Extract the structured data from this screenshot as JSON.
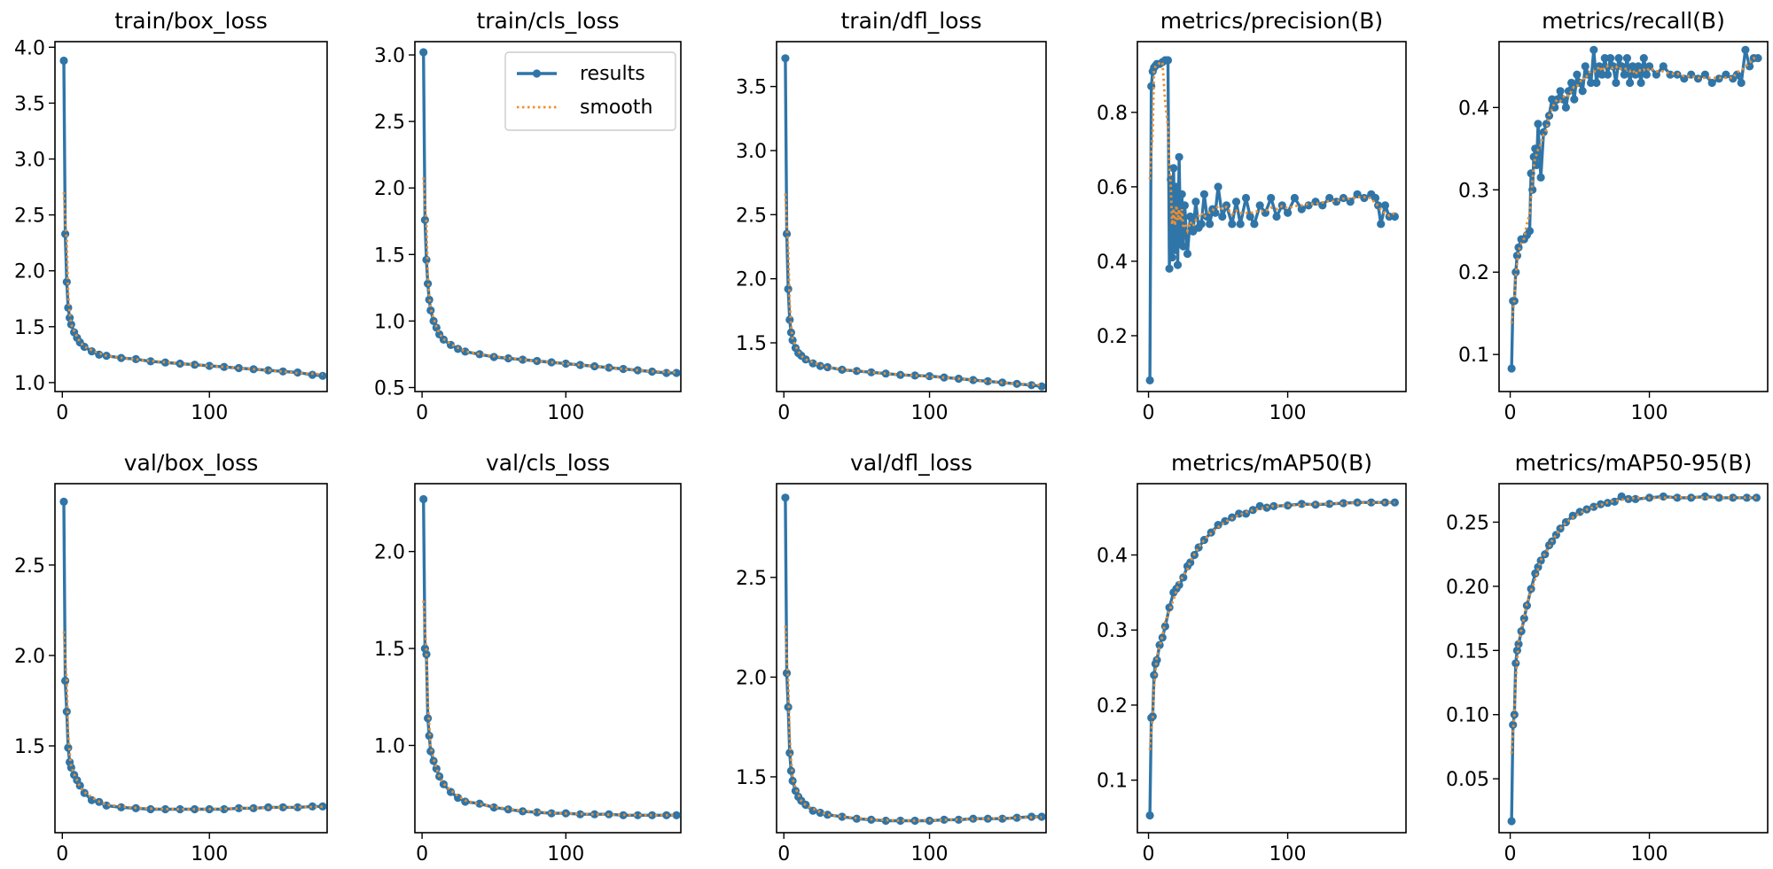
{
  "colors": {
    "results": "#2f75a8",
    "smooth": "#f28e2b",
    "frame": "#000000"
  },
  "legend": {
    "results": "results",
    "smooth": "smooth",
    "placement": "top-right"
  },
  "chart_data": [
    {
      "id": "train-box-loss",
      "type": "line",
      "title": "train/box_loss",
      "xlim": [
        -5,
        180
      ],
      "ylim": [
        0.92,
        4.05
      ],
      "xticks": [
        0,
        100
      ],
      "yticks": [
        1.0,
        1.5,
        2.0,
        2.5,
        3.0,
        3.5,
        4.0
      ],
      "tick_format": 1,
      "series": [
        {
          "name": "results",
          "x": [
            1,
            2,
            3,
            4,
            5,
            6,
            8,
            10,
            12,
            15,
            20,
            25,
            30,
            40,
            50,
            60,
            70,
            80,
            90,
            100,
            110,
            120,
            130,
            140,
            150,
            160,
            170,
            177
          ],
          "y": [
            3.88,
            2.33,
            1.9,
            1.67,
            1.58,
            1.52,
            1.45,
            1.4,
            1.36,
            1.32,
            1.28,
            1.25,
            1.24,
            1.22,
            1.21,
            1.19,
            1.18,
            1.17,
            1.16,
            1.15,
            1.14,
            1.13,
            1.12,
            1.11,
            1.1,
            1.09,
            1.07,
            1.06
          ]
        }
      ]
    },
    {
      "id": "train-cls-loss",
      "type": "line",
      "title": "train/cls_loss",
      "xlim": [
        -5,
        180
      ],
      "ylim": [
        0.47,
        3.1
      ],
      "xticks": [
        0,
        100
      ],
      "yticks": [
        0.5,
        1.0,
        1.5,
        2.0,
        2.5,
        3.0
      ],
      "tick_format": 1,
      "legend": true,
      "series": [
        {
          "name": "results",
          "x": [
            1,
            2,
            3,
            4,
            5,
            6,
            8,
            10,
            12,
            15,
            20,
            25,
            30,
            40,
            50,
            60,
            70,
            80,
            90,
            100,
            110,
            120,
            130,
            140,
            150,
            160,
            170,
            177
          ],
          "y": [
            3.02,
            1.76,
            1.46,
            1.28,
            1.16,
            1.08,
            1.0,
            0.95,
            0.9,
            0.86,
            0.82,
            0.79,
            0.77,
            0.75,
            0.73,
            0.72,
            0.71,
            0.7,
            0.69,
            0.68,
            0.67,
            0.66,
            0.65,
            0.64,
            0.63,
            0.62,
            0.61,
            0.61
          ]
        }
      ]
    },
    {
      "id": "train-dfl-loss",
      "type": "line",
      "title": "train/dfl_loss",
      "xlim": [
        -5,
        180
      ],
      "ylim": [
        1.12,
        3.85
      ],
      "xticks": [
        0,
        100
      ],
      "yticks": [
        1.5,
        2.0,
        2.5,
        3.0,
        3.5
      ],
      "tick_format": 1,
      "series": [
        {
          "name": "results",
          "x": [
            1,
            2,
            3,
            4,
            5,
            6,
            8,
            10,
            12,
            15,
            20,
            25,
            30,
            40,
            50,
            60,
            70,
            80,
            90,
            100,
            110,
            120,
            130,
            140,
            150,
            160,
            170,
            177
          ],
          "y": [
            3.72,
            2.35,
            1.92,
            1.68,
            1.58,
            1.52,
            1.46,
            1.42,
            1.4,
            1.37,
            1.34,
            1.32,
            1.31,
            1.29,
            1.28,
            1.27,
            1.26,
            1.25,
            1.245,
            1.24,
            1.23,
            1.22,
            1.21,
            1.2,
            1.19,
            1.18,
            1.17,
            1.16
          ]
        }
      ]
    },
    {
      "id": "metrics-precision",
      "type": "line",
      "title": "metrics/precision(B)",
      "xlim": [
        -8,
        185
      ],
      "ylim": [
        0.05,
        0.99
      ],
      "xticks": [
        0,
        100
      ],
      "yticks": [
        0.2,
        0.4,
        0.6,
        0.8
      ],
      "tick_format": 1,
      "series": [
        {
          "name": "results",
          "x": [
            1,
            2,
            3,
            4,
            5,
            6,
            8,
            10,
            12,
            14,
            15,
            16,
            17,
            18,
            19,
            20,
            21,
            22,
            23,
            24,
            25,
            26,
            28,
            30,
            32,
            34,
            36,
            38,
            40,
            42,
            44,
            46,
            48,
            50,
            53,
            56,
            60,
            63,
            66,
            70,
            73,
            76,
            80,
            84,
            88,
            92,
            96,
            100,
            105,
            110,
            115,
            120,
            125,
            130,
            135,
            140,
            145,
            150,
            155,
            160,
            163,
            165,
            167,
            170,
            173,
            177
          ],
          "y": [
            0.08,
            0.87,
            0.91,
            0.92,
            0.925,
            0.93,
            0.93,
            0.935,
            0.94,
            0.94,
            0.38,
            0.62,
            0.41,
            0.65,
            0.43,
            0.6,
            0.39,
            0.68,
            0.45,
            0.58,
            0.44,
            0.55,
            0.42,
            0.52,
            0.48,
            0.56,
            0.49,
            0.5,
            0.58,
            0.52,
            0.5,
            0.54,
            0.53,
            0.6,
            0.52,
            0.55,
            0.5,
            0.56,
            0.5,
            0.57,
            0.52,
            0.5,
            0.55,
            0.53,
            0.57,
            0.52,
            0.55,
            0.53,
            0.57,
            0.54,
            0.55,
            0.56,
            0.55,
            0.57,
            0.56,
            0.57,
            0.56,
            0.58,
            0.57,
            0.58,
            0.57,
            0.55,
            0.5,
            0.55,
            0.52,
            0.52
          ]
        }
      ]
    },
    {
      "id": "metrics-recall",
      "type": "line",
      "title": "metrics/recall(B)",
      "xlim": [
        -8,
        185
      ],
      "ylim": [
        0.055,
        0.48
      ],
      "xticks": [
        0,
        100
      ],
      "yticks": [
        0.1,
        0.2,
        0.3,
        0.4
      ],
      "tick_format": 1,
      "series": [
        {
          "name": "results",
          "x": [
            1,
            2,
            3,
            4,
            5,
            6,
            8,
            10,
            12,
            14,
            15,
            16,
            17,
            18,
            19,
            20,
            22,
            24,
            26,
            28,
            30,
            32,
            34,
            36,
            38,
            40,
            42,
            44,
            46,
            48,
            50,
            52,
            54,
            56,
            58,
            60,
            62,
            64,
            66,
            68,
            70,
            72,
            74,
            76,
            78,
            80,
            82,
            84,
            86,
            88,
            90,
            92,
            94,
            96,
            98,
            100,
            105,
            110,
            115,
            120,
            125,
            130,
            135,
            140,
            145,
            150,
            155,
            160,
            163,
            166,
            169,
            172,
            175,
            178
          ],
          "y": [
            0.083,
            0.165,
            0.165,
            0.2,
            0.22,
            0.23,
            0.24,
            0.24,
            0.245,
            0.25,
            0.32,
            0.3,
            0.34,
            0.35,
            0.33,
            0.38,
            0.315,
            0.37,
            0.38,
            0.39,
            0.41,
            0.4,
            0.41,
            0.42,
            0.41,
            0.4,
            0.42,
            0.43,
            0.41,
            0.44,
            0.43,
            0.42,
            0.45,
            0.44,
            0.43,
            0.47,
            0.43,
            0.45,
            0.44,
            0.46,
            0.44,
            0.46,
            0.45,
            0.43,
            0.46,
            0.45,
            0.44,
            0.46,
            0.43,
            0.45,
            0.44,
            0.45,
            0.43,
            0.46,
            0.44,
            0.45,
            0.44,
            0.45,
            0.44,
            0.44,
            0.435,
            0.44,
            0.435,
            0.44,
            0.43,
            0.435,
            0.44,
            0.435,
            0.44,
            0.43,
            0.47,
            0.45,
            0.46,
            0.46
          ]
        }
      ]
    },
    {
      "id": "val-box-loss",
      "type": "line",
      "title": "val/box_loss",
      "xlim": [
        -5,
        180
      ],
      "ylim": [
        1.02,
        2.95
      ],
      "xticks": [
        0,
        100
      ],
      "yticks": [
        1.5,
        2.0,
        2.5
      ],
      "tick_format": 1,
      "series": [
        {
          "name": "results",
          "x": [
            1,
            2,
            3,
            4,
            5,
            6,
            8,
            10,
            12,
            15,
            20,
            25,
            30,
            40,
            50,
            60,
            70,
            80,
            90,
            100,
            110,
            120,
            130,
            140,
            150,
            160,
            170,
            177
          ],
          "y": [
            2.85,
            1.86,
            1.69,
            1.49,
            1.41,
            1.38,
            1.34,
            1.31,
            1.28,
            1.24,
            1.2,
            1.19,
            1.17,
            1.16,
            1.155,
            1.15,
            1.15,
            1.15,
            1.15,
            1.15,
            1.15,
            1.155,
            1.155,
            1.16,
            1.16,
            1.16,
            1.165,
            1.165
          ]
        }
      ]
    },
    {
      "id": "val-cls-loss",
      "type": "line",
      "title": "val/cls_loss",
      "xlim": [
        -5,
        180
      ],
      "ylim": [
        0.55,
        2.35
      ],
      "xticks": [
        0,
        100
      ],
      "yticks": [
        1.0,
        1.5,
        2.0
      ],
      "tick_format": 1,
      "series": [
        {
          "name": "results",
          "x": [
            1,
            2,
            3,
            4,
            5,
            6,
            8,
            10,
            12,
            15,
            20,
            25,
            30,
            40,
            50,
            60,
            70,
            80,
            90,
            100,
            110,
            120,
            130,
            140,
            150,
            160,
            170,
            177
          ],
          "y": [
            2.27,
            1.5,
            1.47,
            1.14,
            1.05,
            0.97,
            0.92,
            0.88,
            0.84,
            0.8,
            0.76,
            0.73,
            0.71,
            0.7,
            0.68,
            0.67,
            0.66,
            0.655,
            0.65,
            0.65,
            0.645,
            0.645,
            0.645,
            0.64,
            0.64,
            0.64,
            0.64,
            0.64
          ]
        }
      ]
    },
    {
      "id": "val-dfl-loss",
      "type": "line",
      "title": "val/dfl_loss",
      "xlim": [
        -5,
        180
      ],
      "ylim": [
        1.22,
        2.97
      ],
      "xticks": [
        0,
        100
      ],
      "yticks": [
        1.5,
        2.0,
        2.5
      ],
      "tick_format": 1,
      "series": [
        {
          "name": "results",
          "x": [
            1,
            2,
            3,
            4,
            5,
            6,
            8,
            10,
            12,
            15,
            20,
            25,
            30,
            40,
            50,
            60,
            70,
            80,
            90,
            100,
            110,
            120,
            130,
            140,
            150,
            160,
            170,
            177
          ],
          "y": [
            2.9,
            2.02,
            1.85,
            1.62,
            1.53,
            1.48,
            1.43,
            1.4,
            1.38,
            1.36,
            1.33,
            1.32,
            1.31,
            1.3,
            1.29,
            1.285,
            1.28,
            1.28,
            1.28,
            1.28,
            1.285,
            1.285,
            1.29,
            1.29,
            1.29,
            1.295,
            1.3,
            1.3
          ]
        }
      ]
    },
    {
      "id": "metrics-map50",
      "type": "line",
      "title": "metrics/mAP50(B)",
      "xlim": [
        -8,
        185
      ],
      "ylim": [
        0.03,
        0.495
      ],
      "xticks": [
        0,
        100
      ],
      "yticks": [
        0.1,
        0.2,
        0.3,
        0.4
      ],
      "tick_format": 1,
      "series": [
        {
          "name": "results",
          "x": [
            1,
            2,
            3,
            4,
            5,
            6,
            8,
            10,
            12,
            15,
            18,
            20,
            22,
            25,
            28,
            30,
            33,
            36,
            40,
            45,
            50,
            55,
            60,
            65,
            70,
            75,
            80,
            85,
            90,
            100,
            110,
            120,
            130,
            140,
            150,
            160,
            170,
            177
          ],
          "y": [
            0.053,
            0.183,
            0.185,
            0.24,
            0.255,
            0.26,
            0.28,
            0.29,
            0.305,
            0.33,
            0.35,
            0.355,
            0.36,
            0.37,
            0.385,
            0.39,
            0.4,
            0.41,
            0.42,
            0.43,
            0.44,
            0.445,
            0.45,
            0.455,
            0.455,
            0.46,
            0.465,
            0.463,
            0.465,
            0.466,
            0.468,
            0.467,
            0.468,
            0.469,
            0.47,
            0.47,
            0.47,
            0.47
          ]
        }
      ]
    },
    {
      "id": "metrics-map50-95",
      "type": "line",
      "title": "metrics/mAP50-95(B)",
      "xlim": [
        -8,
        185
      ],
      "ylim": [
        0.008,
        0.28
      ],
      "xticks": [
        0,
        100
      ],
      "yticks": [
        0.05,
        0.1,
        0.15,
        0.2,
        0.25
      ],
      "tick_format": 2,
      "series": [
        {
          "name": "results",
          "x": [
            1,
            2,
            3,
            4,
            5,
            6,
            8,
            10,
            12,
            15,
            18,
            20,
            22,
            25,
            28,
            30,
            33,
            36,
            40,
            45,
            50,
            55,
            60,
            65,
            70,
            75,
            80,
            85,
            90,
            100,
            110,
            120,
            130,
            140,
            150,
            160,
            170,
            177
          ],
          "y": [
            0.017,
            0.092,
            0.1,
            0.14,
            0.15,
            0.155,
            0.165,
            0.175,
            0.185,
            0.198,
            0.21,
            0.215,
            0.22,
            0.225,
            0.232,
            0.235,
            0.24,
            0.245,
            0.25,
            0.255,
            0.258,
            0.26,
            0.262,
            0.264,
            0.265,
            0.266,
            0.27,
            0.268,
            0.268,
            0.269,
            0.27,
            0.269,
            0.269,
            0.27,
            0.269,
            0.269,
            0.269,
            0.269
          ]
        }
      ]
    }
  ]
}
